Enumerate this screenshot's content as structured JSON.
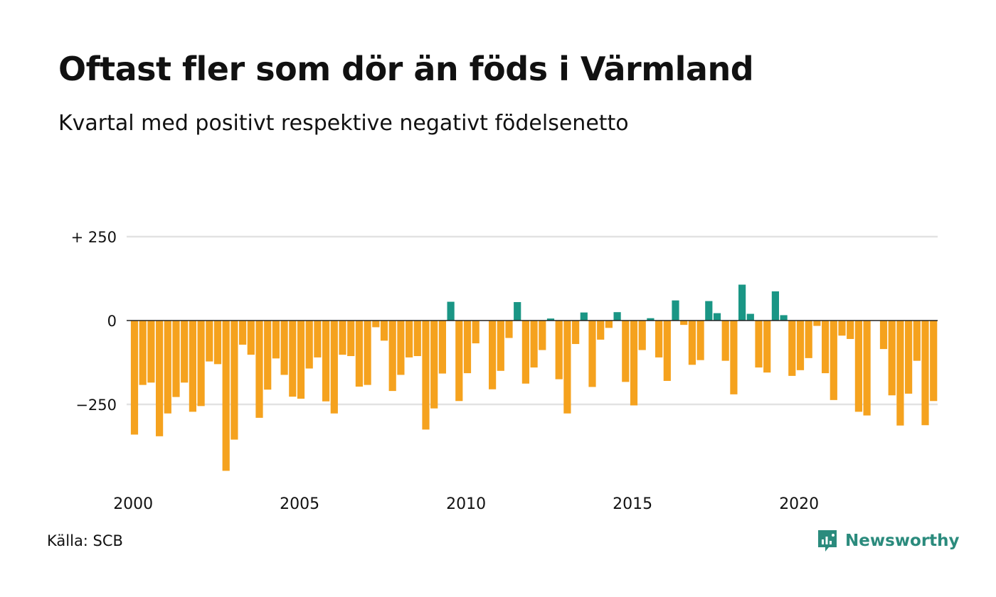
{
  "title": "Oftast fler som dör än föds i Värmland",
  "subtitle": "Kvartal med positivt respektive negativt födelsenetto",
  "source": "Källa: SCB",
  "brand": {
    "name": "Newsworthy",
    "icon": "newsworthy-logo-icon"
  },
  "colors": {
    "positive": "#1a9685",
    "negative": "#f5a21e",
    "grid": "#e2e2e2",
    "zero_line": "#222222"
  },
  "chart_data": {
    "type": "bar",
    "title": "Oftast fler som dör än föds i Värmland",
    "subtitle": "Kvartal med positivt respektive negativt födelsenetto",
    "xlabel": "",
    "ylabel": "",
    "ylim": [
      -450,
      250
    ],
    "y_ticks": [
      {
        "value": 250,
        "label": "+ 250"
      },
      {
        "value": 0,
        "label": "0"
      },
      {
        "value": -250,
        "label": "−250"
      }
    ],
    "x_ticks": [
      {
        "year": 2000,
        "label": "2000"
      },
      {
        "year": 2005,
        "label": "2005"
      },
      {
        "year": 2010,
        "label": "2010"
      },
      {
        "year": 2015,
        "label": "2015"
      },
      {
        "year": 2020,
        "label": "2020"
      }
    ],
    "start": "2000 Q1",
    "grid": true,
    "legend": "none",
    "values": [
      -340,
      -192,
      -185,
      -345,
      -277,
      -228,
      -185,
      -272,
      -255,
      -122,
      -130,
      -448,
      -355,
      -72,
      -102,
      -290,
      -206,
      -113,
      -162,
      -227,
      -233,
      -143,
      -110,
      -241,
      -277,
      -102,
      -106,
      -197,
      -192,
      -20,
      -60,
      -210,
      -162,
      -110,
      -106,
      -325,
      -262,
      -158,
      56,
      -240,
      -157,
      -68,
      0,
      -205,
      -150,
      -52,
      55,
      -188,
      -140,
      -88,
      6,
      -175,
      -277,
      -70,
      24,
      -198,
      -57,
      -22,
      25,
      -183,
      -253,
      -88,
      7,
      -110,
      -180,
      60,
      -13,
      -132,
      -118,
      58,
      22,
      -120,
      -220,
      107,
      20,
      -140,
      -155,
      87,
      16,
      -165,
      -148,
      -112,
      -16,
      -157,
      -237,
      -45,
      -55,
      -272,
      -283,
      0,
      -85,
      -223,
      -313,
      -218,
      -120,
      -312,
      -240
    ]
  }
}
